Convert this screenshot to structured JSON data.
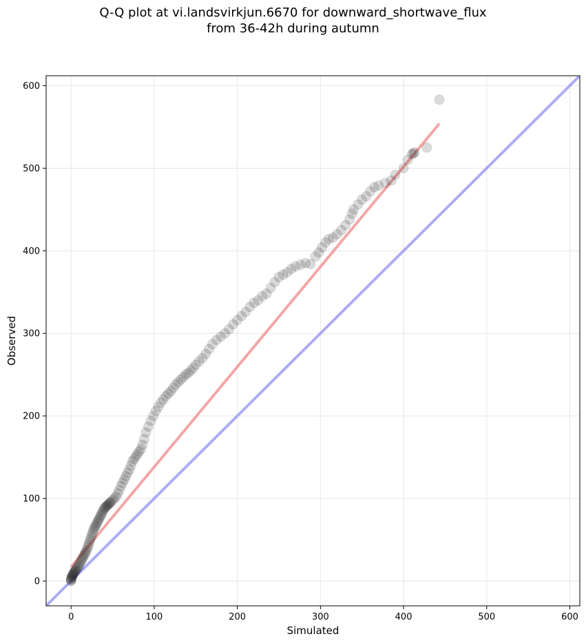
{
  "chart_data": {
    "type": "scatter",
    "title_line1": "Q-Q plot at vi.landsvirkjun.6670 for downward_shortwave_flux",
    "title_line2": "from 36-42h during autumn",
    "xlabel": "Simulated",
    "ylabel": "Observed",
    "xlim": [
      -30,
      612
    ],
    "ylim": [
      -30,
      612
    ],
    "xticks": [
      0,
      100,
      200,
      300,
      400,
      500,
      600
    ],
    "yticks": [
      0,
      100,
      200,
      300,
      400,
      500,
      600
    ],
    "grid": true,
    "colors": {
      "points": "#222222",
      "fit_line": "#f08080",
      "identity_line": "#8080f0"
    },
    "fit_line": {
      "x": [
        0,
        443
      ],
      "y": [
        17,
        554
      ]
    },
    "identity_line": {
      "x": [
        -30,
        612
      ],
      "y": [
        -30,
        612
      ]
    },
    "points": {
      "x": [
        0,
        0,
        0,
        0,
        1,
        1,
        1,
        2,
        2,
        3,
        3,
        4,
        5,
        5,
        6,
        7,
        8,
        9,
        10,
        11,
        12,
        13,
        14,
        15,
        16,
        17,
        18,
        19,
        20,
        21,
        22,
        23,
        24,
        25,
        26,
        27,
        28,
        29,
        30,
        31,
        32,
        33,
        34,
        35,
        36,
        37,
        38,
        39,
        40,
        41,
        42,
        43,
        44,
        45,
        46,
        47,
        48,
        50,
        52,
        54,
        56,
        58,
        60,
        62,
        64,
        66,
        68,
        70,
        72,
        74,
        76,
        78,
        80,
        82,
        84,
        86,
        88,
        90,
        93,
        96,
        99,
        102,
        105,
        108,
        111,
        114,
        117,
        120,
        123,
        126,
        129,
        132,
        135,
        138,
        141,
        144,
        147,
        150,
        154,
        158,
        162,
        166,
        170,
        175,
        180,
        185,
        190,
        195,
        200,
        205,
        210,
        215,
        220,
        225,
        230,
        235,
        240,
        245,
        250,
        255,
        260,
        265,
        270,
        276,
        282,
        288,
        294,
        298,
        302,
        306,
        310,
        315,
        320,
        325,
        330,
        335,
        338,
        340,
        345,
        350,
        355,
        360,
        365,
        370,
        378,
        385,
        390,
        400,
        405,
        410,
        412,
        413,
        428,
        443
      ],
      "y": [
        0,
        1,
        2,
        3,
        4,
        5,
        6,
        7,
        8,
        9,
        10,
        11,
        12,
        13,
        14,
        15,
        17,
        18,
        20,
        22,
        24,
        26,
        28,
        30,
        32,
        34,
        36,
        38,
        41,
        44,
        47,
        50,
        53,
        56,
        59,
        62,
        64,
        66,
        68,
        70,
        72,
        74,
        76,
        78,
        80,
        82,
        84,
        86,
        88,
        89,
        90,
        91,
        92,
        93,
        94,
        95,
        96,
        98,
        100,
        102,
        106,
        110,
        115,
        119,
        123,
        127,
        131,
        135,
        140,
        145,
        148,
        151,
        154,
        157,
        160,
        165,
        172,
        180,
        187,
        194,
        200,
        206,
        211,
        216,
        220,
        224,
        227,
        230,
        234,
        238,
        241,
        244,
        247,
        250,
        252,
        255,
        258,
        262,
        266,
        270,
        275,
        281,
        287,
        292,
        296,
        300,
        305,
        311,
        316,
        321,
        326,
        332,
        337,
        340,
        345,
        348,
        355,
        362,
        368,
        371,
        374,
        378,
        381,
        383,
        385,
        384,
        393,
        398,
        404,
        410,
        414,
        416,
        420,
        425,
        431,
        438,
        445,
        450,
        456,
        462,
        466,
        472,
        477,
        479,
        482,
        485,
        492,
        500,
        510,
        517,
        518,
        519,
        525,
        583
      ]
    }
  }
}
